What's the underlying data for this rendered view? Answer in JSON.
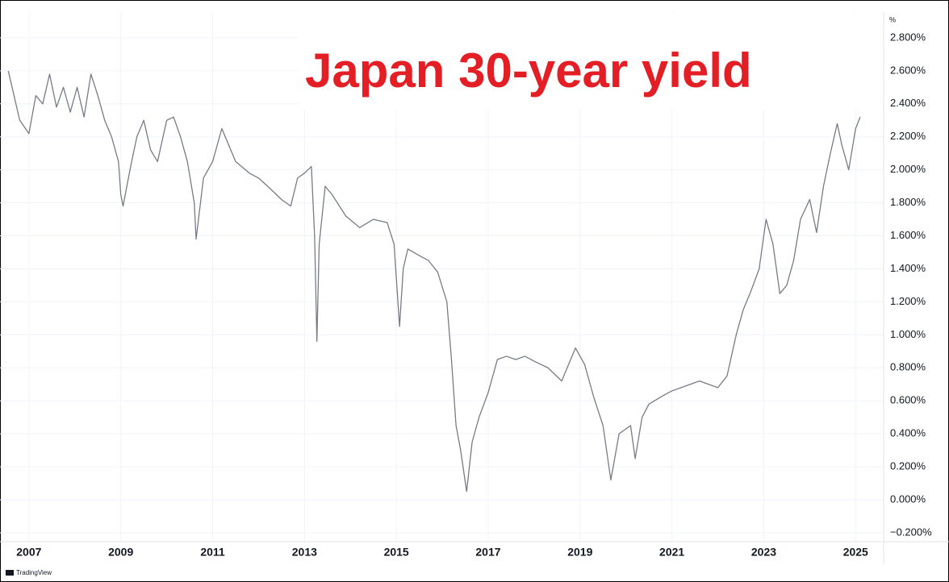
{
  "chart_data": {
    "type": "line",
    "title": "Japan 30-year yield",
    "y_unit": "%",
    "attribution": "TradingView",
    "color": "#787b86",
    "title_color": "#e31e24",
    "grid": true,
    "x": [
      2006.55,
      2006.7,
      2006.8,
      2007.0,
      2007.15,
      2007.3,
      2007.45,
      2007.6,
      2007.75,
      2007.9,
      2008.05,
      2008.2,
      2008.35,
      2008.5,
      2008.65,
      2008.8,
      2008.95,
      2009.0,
      2009.05,
      2009.2,
      2009.35,
      2009.5,
      2009.65,
      2009.8,
      2010.0,
      2010.15,
      2010.3,
      2010.45,
      2010.6,
      2010.64,
      2010.8,
      2011.0,
      2011.2,
      2011.35,
      2011.5,
      2011.8,
      2012.0,
      2012.2,
      2012.5,
      2012.7,
      2012.85,
      2013.0,
      2013.15,
      2013.22,
      2013.27,
      2013.32,
      2013.45,
      2013.6,
      2013.9,
      2014.2,
      2014.5,
      2014.8,
      2014.95,
      2015.07,
      2015.15,
      2015.25,
      2015.5,
      2015.7,
      2015.9,
      2016.1,
      2016.2,
      2016.3,
      2016.4,
      2016.53,
      2016.65,
      2016.8,
      2017.0,
      2017.2,
      2017.4,
      2017.6,
      2017.8,
      2018.0,
      2018.3,
      2018.6,
      2018.9,
      2019.1,
      2019.3,
      2019.5,
      2019.67,
      2019.85,
      2020.1,
      2020.2,
      2020.35,
      2020.5,
      2020.8,
      2021.0,
      2021.2,
      2021.6,
      2022.0,
      2022.2,
      2022.4,
      2022.55,
      2022.7,
      2022.9,
      2023.05,
      2023.2,
      2023.35,
      2023.5,
      2023.65,
      2023.8,
      2024.0,
      2024.15,
      2024.3,
      2024.45,
      2024.6,
      2024.7,
      2024.85,
      2025.0,
      2025.1
    ],
    "values": [
      2.6,
      2.42,
      2.3,
      2.22,
      2.45,
      2.4,
      2.58,
      2.38,
      2.5,
      2.35,
      2.5,
      2.32,
      2.58,
      2.45,
      2.3,
      2.2,
      2.05,
      1.85,
      1.78,
      2.0,
      2.2,
      2.3,
      2.12,
      2.05,
      2.3,
      2.32,
      2.2,
      2.05,
      1.8,
      1.58,
      1.95,
      2.05,
      2.25,
      2.15,
      2.05,
      1.98,
      1.95,
      1.9,
      1.82,
      1.78,
      1.95,
      1.98,
      2.02,
      1.6,
      0.96,
      1.55,
      1.9,
      1.85,
      1.72,
      1.65,
      1.7,
      1.68,
      1.55,
      1.05,
      1.4,
      1.52,
      1.48,
      1.45,
      1.38,
      1.2,
      0.85,
      0.45,
      0.3,
      0.05,
      0.35,
      0.5,
      0.65,
      0.85,
      0.87,
      0.85,
      0.87,
      0.84,
      0.8,
      0.72,
      0.92,
      0.82,
      0.62,
      0.45,
      0.12,
      0.4,
      0.45,
      0.25,
      0.5,
      0.58,
      0.63,
      0.66,
      0.68,
      0.72,
      0.68,
      0.75,
      1.0,
      1.15,
      1.25,
      1.4,
      1.7,
      1.55,
      1.25,
      1.3,
      1.45,
      1.7,
      1.82,
      1.62,
      1.9,
      2.1,
      2.28,
      2.15,
      2.0,
      2.25,
      2.32
    ],
    "xlim": [
      2006.37,
      2025.61
    ],
    "ylim": [
      -0.254,
      2.956
    ],
    "xticks": [
      2007,
      2009,
      2011,
      2013,
      2015,
      2017,
      2019,
      2021,
      2023,
      2025
    ],
    "yticks": [
      {
        "value": 2.8,
        "label": "2.800%"
      },
      {
        "value": 2.6,
        "label": "2.600%"
      },
      {
        "value": 2.4,
        "label": "2.400%"
      },
      {
        "value": 2.2,
        "label": "2.200%"
      },
      {
        "value": 2.0,
        "label": "2.000%"
      },
      {
        "value": 1.8,
        "label": "1.800%"
      },
      {
        "value": 1.6,
        "label": "1.600%"
      },
      {
        "value": 1.4,
        "label": "1.400%"
      },
      {
        "value": 1.2,
        "label": "1.200%"
      },
      {
        "value": 1.0,
        "label": "1.000%"
      },
      {
        "value": 0.8,
        "label": "0.800%"
      },
      {
        "value": 0.6,
        "label": "0.600%"
      },
      {
        "value": 0.4,
        "label": "0.400%"
      },
      {
        "value": 0.2,
        "label": "0.200%"
      },
      {
        "value": 0.0,
        "label": "0.000%"
      },
      {
        "value": -0.2,
        "label": "−0.200%"
      }
    ]
  }
}
